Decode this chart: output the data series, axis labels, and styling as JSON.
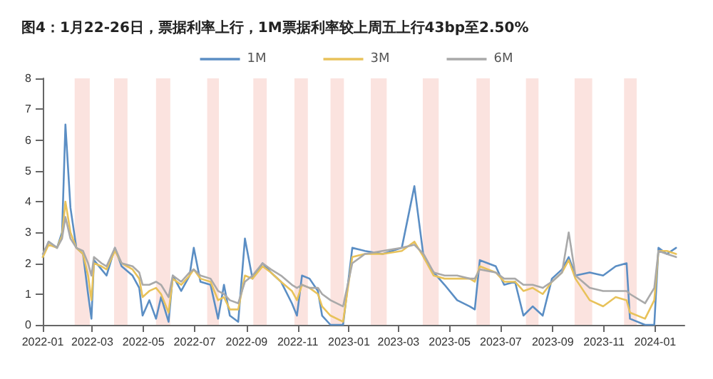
{
  "chart_data": {
    "type": "line",
    "title": "图4：1月22-26日，票据利率上行，1M票据利率较上周五上行43bp至2.50%",
    "x": [
      "2022-01-01",
      "2022-01-08",
      "2022-01-18",
      "2022-01-24",
      "2022-01-28",
      "2022-02-03",
      "2022-02-10",
      "2022-02-18",
      "2022-02-24",
      "2022-02-28",
      "2022-03-03",
      "2022-03-12",
      "2022-03-18",
      "2022-03-28",
      "2022-04-05",
      "2022-04-18",
      "2022-04-26",
      "2022-04-30",
      "2022-05-08",
      "2022-05-16",
      "2022-05-22",
      "2022-05-31",
      "2022-06-05",
      "2022-06-15",
      "2022-06-25",
      "2022-06-30",
      "2022-07-08",
      "2022-07-20",
      "2022-07-29",
      "2022-08-05",
      "2022-08-12",
      "2022-08-22",
      "2022-08-30",
      "2022-09-08",
      "2022-09-20",
      "2022-09-30",
      "2022-10-12",
      "2022-10-25",
      "2022-10-31",
      "2022-11-06",
      "2022-11-15",
      "2022-11-25",
      "2022-11-30",
      "2022-12-10",
      "2022-12-25",
      "2023-01-05",
      "2023-01-20",
      "2023-02-10",
      "2023-03-05",
      "2023-03-20",
      "2023-03-31",
      "2023-04-12",
      "2023-04-25",
      "2023-05-10",
      "2023-05-25",
      "2023-05-31",
      "2023-06-06",
      "2023-06-25",
      "2023-07-05",
      "2023-07-18",
      "2023-07-28",
      "2023-08-08",
      "2023-08-20",
      "2023-08-31",
      "2023-09-12",
      "2023-09-20",
      "2023-09-28",
      "2023-10-15",
      "2023-10-31",
      "2023-11-15",
      "2023-11-28",
      "2023-12-02",
      "2023-12-20",
      "2023-12-31",
      "2024-01-05",
      "2024-01-15",
      "2024-01-26"
    ],
    "series": [
      {
        "name": "1M",
        "color": "#5b8ec4",
        "values": [
          2.2,
          2.7,
          2.5,
          3.0,
          6.5,
          3.8,
          2.5,
          2.3,
          1.0,
          0.2,
          2.1,
          1.8,
          1.6,
          2.5,
          1.9,
          1.6,
          1.2,
          0.3,
          0.8,
          0.2,
          0.9,
          0.1,
          1.6,
          1.1,
          1.6,
          2.5,
          1.4,
          1.3,
          0.2,
          1.3,
          0.3,
          0.1,
          2.8,
          1.5,
          2.0,
          1.7,
          1.4,
          0.7,
          0.3,
          1.6,
          1.5,
          1.1,
          0.3,
          0.0,
          0.0,
          2.5,
          2.4,
          2.3,
          2.5,
          4.5,
          2.2,
          1.7,
          1.3,
          0.8,
          0.6,
          0.5,
          2.1,
          1.9,
          1.3,
          1.4,
          0.3,
          0.6,
          0.3,
          1.5,
          1.8,
          2.2,
          1.6,
          1.7,
          1.6,
          1.9,
          2.0,
          0.2,
          0.0,
          0.0,
          2.5,
          2.3,
          2.5
        ]
      },
      {
        "name": "3M",
        "color": "#e8c25a",
        "values": [
          2.2,
          2.6,
          2.5,
          2.9,
          4.0,
          3.0,
          2.5,
          2.3,
          1.6,
          0.8,
          2.0,
          1.9,
          1.8,
          2.4,
          2.0,
          1.8,
          1.5,
          0.9,
          1.1,
          1.2,
          1.0,
          0.4,
          1.5,
          1.3,
          1.6,
          1.8,
          1.5,
          1.4,
          0.8,
          0.9,
          0.5,
          0.5,
          1.6,
          1.5,
          1.9,
          1.7,
          1.4,
          1.1,
          0.8,
          1.3,
          1.2,
          1.0,
          0.6,
          0.3,
          0.1,
          2.2,
          2.3,
          2.3,
          2.4,
          2.7,
          2.2,
          1.6,
          1.5,
          1.5,
          1.5,
          1.4,
          1.9,
          1.7,
          1.4,
          1.4,
          1.1,
          1.2,
          1.0,
          1.4,
          1.7,
          2.1,
          1.5,
          0.8,
          0.6,
          0.9,
          0.8,
          0.4,
          0.2,
          0.8,
          2.4,
          2.4,
          2.3
        ]
      },
      {
        "name": "6M",
        "color": "#a9a9a9",
        "values": [
          2.3,
          2.7,
          2.5,
          2.8,
          3.5,
          2.8,
          2.5,
          2.4,
          2.0,
          1.6,
          2.2,
          2.0,
          1.9,
          2.5,
          2.0,
          1.9,
          1.7,
          1.3,
          1.3,
          1.4,
          1.3,
          0.9,
          1.6,
          1.4,
          1.7,
          1.8,
          1.6,
          1.5,
          1.1,
          1.0,
          0.8,
          0.7,
          1.4,
          1.6,
          2.0,
          1.8,
          1.6,
          1.3,
          1.2,
          1.3,
          1.2,
          1.2,
          1.0,
          0.8,
          0.6,
          2.0,
          2.3,
          2.4,
          2.5,
          2.6,
          2.3,
          1.7,
          1.6,
          1.6,
          1.5,
          1.5,
          1.8,
          1.7,
          1.5,
          1.5,
          1.3,
          1.3,
          1.2,
          1.4,
          1.7,
          3.0,
          1.6,
          1.2,
          1.1,
          1.1,
          1.1,
          1.0,
          0.7,
          1.2,
          2.4,
          2.3,
          2.2
        ]
      }
    ],
    "xlim": [
      "2022-01-01",
      "2024-02-05"
    ],
    "xticks": [
      "2022-01",
      "2022-03",
      "2022-05",
      "2022-07",
      "2022-09",
      "2022-11",
      "2023-01",
      "2023-03",
      "2023-05",
      "2023-07",
      "2023-09",
      "2023-11",
      "2024-01"
    ],
    "ylim": [
      0,
      8
    ],
    "yticks": [
      0,
      1,
      2,
      3,
      4,
      5,
      6,
      7,
      8
    ],
    "bands": [
      {
        "axis": "x",
        "from": "2022-02-08",
        "to": "2022-02-26",
        "color": "#fbe3df"
      },
      {
        "axis": "x",
        "from": "2022-03-27",
        "to": "2022-04-12",
        "color": "#fbe3df"
      },
      {
        "axis": "x",
        "from": "2022-05-16",
        "to": "2022-06-02",
        "color": "#fbe3df"
      },
      {
        "axis": "x",
        "from": "2022-07-16",
        "to": "2022-07-30",
        "color": "#fbe3df"
      },
      {
        "axis": "x",
        "from": "2022-09-09",
        "to": "2022-09-25",
        "color": "#fbe3df"
      },
      {
        "axis": "x",
        "from": "2022-10-28",
        "to": "2022-11-13",
        "color": "#fbe3df"
      },
      {
        "axis": "x",
        "from": "2022-12-10",
        "to": "2022-12-26",
        "color": "#fbe3df"
      },
      {
        "axis": "x",
        "from": "2023-01-27",
        "to": "2023-02-15",
        "color": "#fbe3df"
      },
      {
        "axis": "x",
        "from": "2023-03-30",
        "to": "2023-04-18",
        "color": "#fbe3df"
      },
      {
        "axis": "x",
        "from": "2023-06-02",
        "to": "2023-06-18",
        "color": "#fbe3df"
      },
      {
        "axis": "x",
        "from": "2023-07-31",
        "to": "2023-08-15",
        "color": "#fbe3df"
      },
      {
        "axis": "x",
        "from": "2023-09-27",
        "to": "2023-10-18",
        "color": "#fbe3df"
      },
      {
        "axis": "x",
        "from": "2023-11-25",
        "to": "2023-12-10",
        "color": "#fbe3df"
      }
    ],
    "grid": false,
    "legend": "top",
    "marker": "none",
    "line_style": "solid"
  }
}
